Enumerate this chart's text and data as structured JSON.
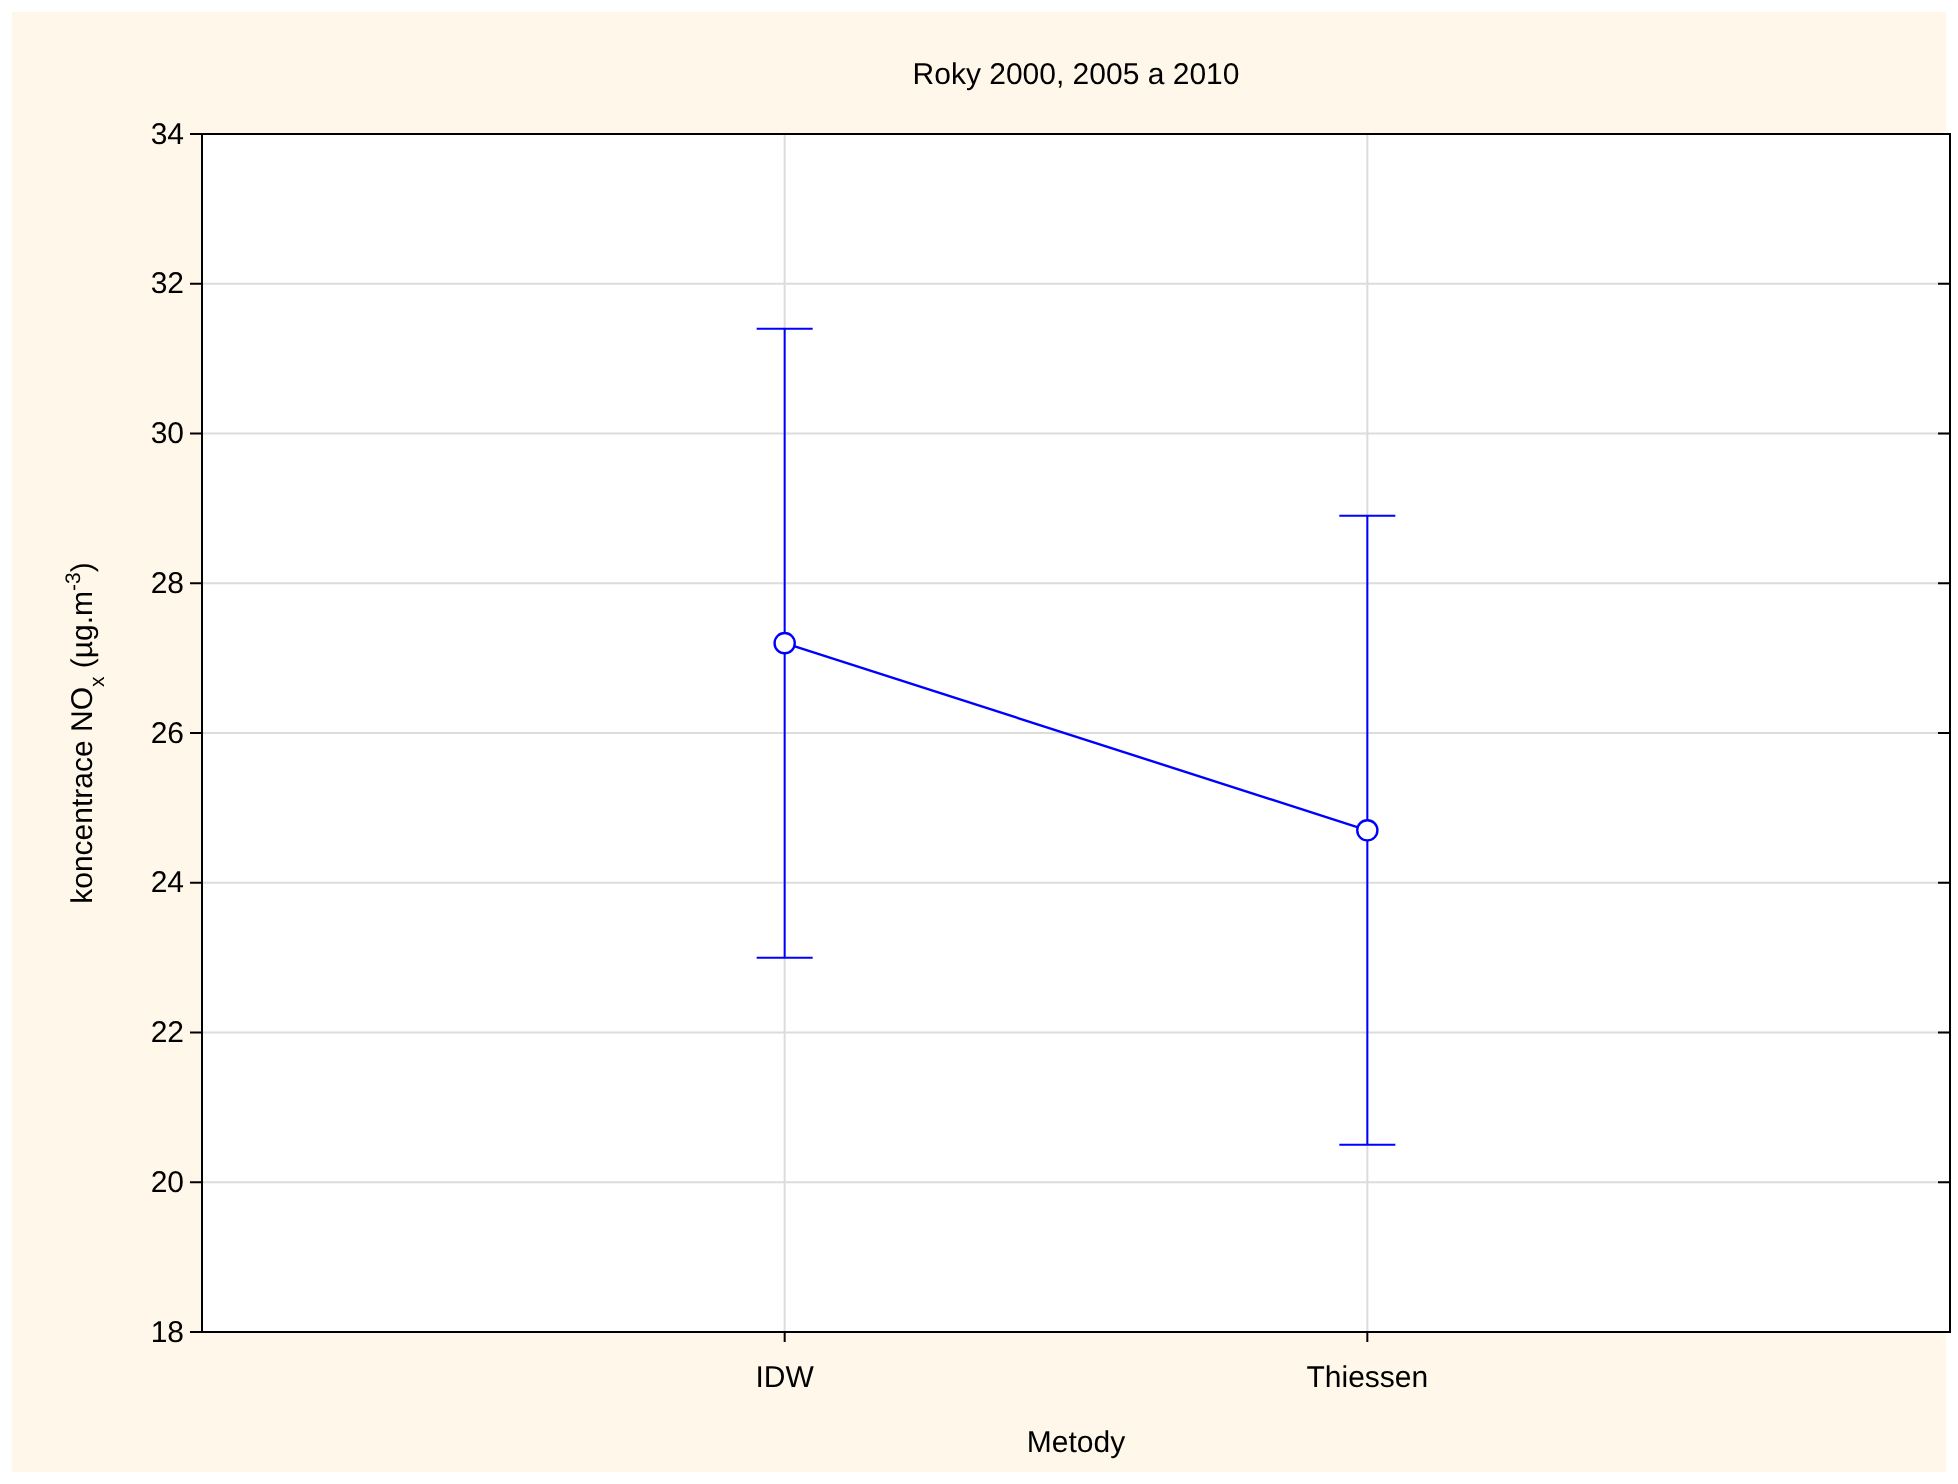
{
  "chart_data": {
    "type": "line",
    "title": "Roky 2000, 2005 a 2010",
    "xlabel": "Metody",
    "ylabel": "koncentrace NO$_{x}$ (µg.m$^{-3}$)",
    "categories": [
      "IDW",
      "Thiessen"
    ],
    "series": [
      {
        "color": "#0000ff",
        "values": [
          27.2,
          24.7
        ],
        "errors": [
          [
            23.0,
            31.4
          ],
          [
            20.5,
            28.9
          ]
        ]
      }
    ],
    "ylim": [
      18,
      34
    ],
    "yticks": [
      18,
      20,
      22,
      24,
      26,
      28,
      30,
      32,
      34
    ],
    "grid": true,
    "marker": "circle",
    "line_style": "solid"
  }
}
